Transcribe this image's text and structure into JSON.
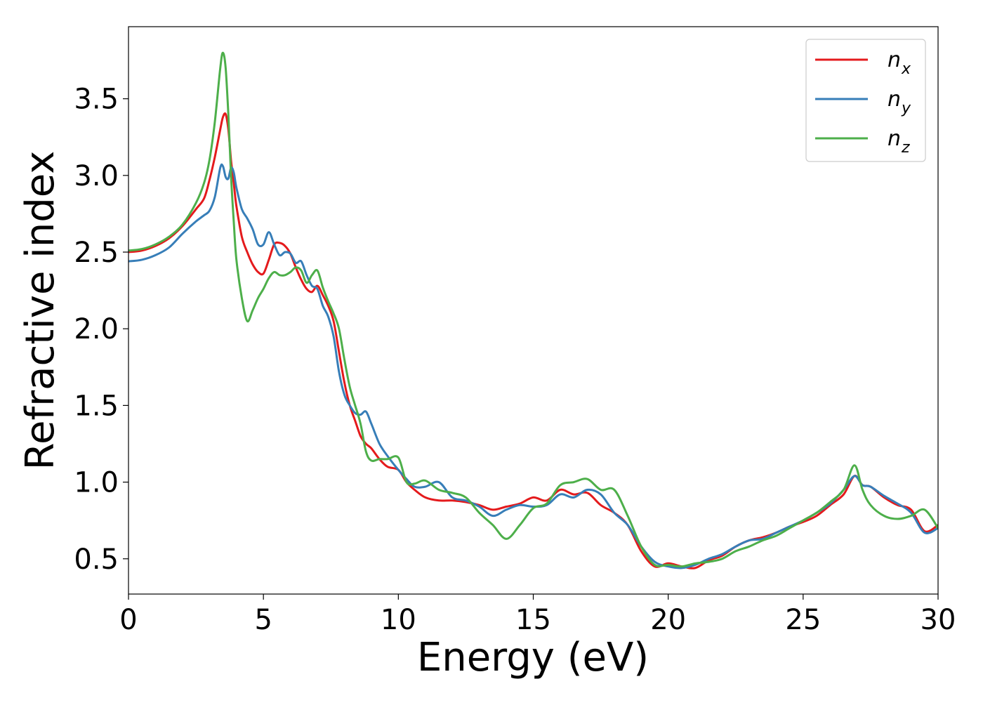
{
  "chart_data": {
    "type": "line",
    "xlabel": "Energy (eV)",
    "ylabel": "Refractive index",
    "xlim": [
      0,
      30
    ],
    "ylim": [
      0.27,
      3.97
    ],
    "xticks": [
      0,
      5,
      10,
      15,
      20,
      25,
      30
    ],
    "xtick_labels": [
      "0",
      "5",
      "10",
      "15",
      "20",
      "25",
      "30"
    ],
    "yticks": [
      0.5,
      1.0,
      1.5,
      2.0,
      2.5,
      3.0,
      3.5
    ],
    "ytick_labels": [
      "0.5",
      "1.0",
      "1.5",
      "2.0",
      "2.5",
      "3.0",
      "3.5"
    ],
    "grid": false,
    "legend_position": "upper-right",
    "series": [
      {
        "name": "n",
        "subscript": "x",
        "color": "#e41a1c",
        "x": [
          0,
          0.5,
          1.0,
          1.5,
          2.0,
          2.5,
          2.8,
          3.0,
          3.2,
          3.4,
          3.5,
          3.6,
          3.7,
          3.8,
          3.9,
          4.0,
          4.2,
          4.4,
          4.6,
          4.8,
          5.0,
          5.2,
          5.4,
          5.6,
          5.8,
          6.0,
          6.2,
          6.4,
          6.6,
          6.8,
          7.0,
          7.2,
          7.4,
          7.6,
          7.8,
          8.0,
          8.2,
          8.4,
          8.6,
          8.8,
          9.0,
          9.3,
          9.6,
          10.0,
          10.3,
          10.6,
          11.0,
          11.5,
          12.0,
          12.5,
          13.0,
          13.5,
          14.0,
          14.5,
          15.0,
          15.5,
          16.0,
          16.5,
          17.0,
          17.5,
          18.0,
          18.5,
          19.0,
          19.5,
          20.0,
          20.5,
          21.0,
          21.5,
          22.0,
          22.5,
          23.0,
          23.5,
          24.0,
          24.5,
          25.0,
          25.5,
          26.0,
          26.5,
          26.9,
          27.2,
          27.5,
          28.0,
          28.5,
          29.0,
          29.5,
          30.0
        ],
        "values": [
          2.5,
          2.51,
          2.54,
          2.59,
          2.67,
          2.78,
          2.85,
          2.97,
          3.12,
          3.3,
          3.38,
          3.4,
          3.3,
          3.1,
          2.95,
          2.8,
          2.6,
          2.5,
          2.42,
          2.37,
          2.36,
          2.45,
          2.55,
          2.56,
          2.54,
          2.49,
          2.4,
          2.32,
          2.26,
          2.24,
          2.28,
          2.22,
          2.15,
          2.05,
          1.85,
          1.65,
          1.5,
          1.4,
          1.3,
          1.25,
          1.22,
          1.15,
          1.1,
          1.08,
          1.0,
          0.95,
          0.9,
          0.88,
          0.88,
          0.87,
          0.85,
          0.82,
          0.84,
          0.86,
          0.9,
          0.88,
          0.95,
          0.92,
          0.93,
          0.85,
          0.8,
          0.72,
          0.55,
          0.45,
          0.47,
          0.45,
          0.44,
          0.49,
          0.52,
          0.58,
          0.62,
          0.64,
          0.67,
          0.71,
          0.74,
          0.78,
          0.85,
          0.92,
          1.04,
          0.98,
          0.97,
          0.9,
          0.85,
          0.82,
          0.68,
          0.72
        ]
      },
      {
        "name": "n",
        "subscript": "y",
        "color": "#377eb8",
        "x": [
          0,
          0.5,
          1.0,
          1.5,
          2.0,
          2.5,
          2.8,
          3.0,
          3.2,
          3.4,
          3.5,
          3.6,
          3.7,
          3.8,
          3.9,
          4.0,
          4.2,
          4.4,
          4.6,
          4.8,
          5.0,
          5.2,
          5.4,
          5.6,
          5.8,
          6.0,
          6.2,
          6.4,
          6.6,
          6.8,
          7.0,
          7.2,
          7.4,
          7.6,
          7.8,
          8.0,
          8.2,
          8.4,
          8.6,
          8.8,
          9.0,
          9.3,
          9.6,
          10.0,
          10.3,
          10.6,
          11.0,
          11.5,
          12.0,
          12.5,
          13.0,
          13.5,
          14.0,
          14.5,
          15.0,
          15.5,
          16.0,
          16.5,
          17.0,
          17.5,
          18.0,
          18.5,
          19.0,
          19.5,
          20.0,
          20.5,
          21.0,
          21.5,
          22.0,
          22.5,
          23.0,
          23.5,
          24.0,
          24.5,
          25.0,
          25.5,
          26.0,
          26.5,
          26.9,
          27.2,
          27.5,
          28.0,
          28.5,
          29.0,
          29.5,
          30.0
        ],
        "values": [
          2.44,
          2.45,
          2.48,
          2.53,
          2.62,
          2.7,
          2.74,
          2.77,
          2.86,
          3.05,
          3.06,
          2.99,
          2.98,
          3.05,
          3.02,
          2.92,
          2.78,
          2.72,
          2.65,
          2.55,
          2.55,
          2.63,
          2.55,
          2.48,
          2.5,
          2.49,
          2.43,
          2.44,
          2.35,
          2.28,
          2.26,
          2.15,
          2.08,
          1.95,
          1.72,
          1.57,
          1.5,
          1.45,
          1.44,
          1.46,
          1.38,
          1.25,
          1.17,
          1.08,
          1.02,
          0.97,
          0.97,
          1.0,
          0.9,
          0.88,
          0.84,
          0.78,
          0.82,
          0.85,
          0.84,
          0.85,
          0.92,
          0.9,
          0.95,
          0.92,
          0.8,
          0.72,
          0.58,
          0.48,
          0.45,
          0.44,
          0.46,
          0.5,
          0.53,
          0.58,
          0.62,
          0.63,
          0.67,
          0.71,
          0.75,
          0.8,
          0.86,
          0.95,
          1.04,
          0.98,
          0.97,
          0.91,
          0.86,
          0.8,
          0.67,
          0.7
        ]
      },
      {
        "name": "n",
        "subscript": "z",
        "color": "#4daf4a",
        "x": [
          0,
          0.5,
          1.0,
          1.5,
          2.0,
          2.5,
          2.8,
          3.0,
          3.2,
          3.4,
          3.5,
          3.6,
          3.7,
          3.8,
          3.9,
          4.0,
          4.2,
          4.4,
          4.6,
          4.8,
          5.0,
          5.2,
          5.4,
          5.6,
          5.8,
          6.0,
          6.2,
          6.4,
          6.6,
          6.8,
          7.0,
          7.2,
          7.4,
          7.6,
          7.8,
          8.0,
          8.2,
          8.4,
          8.6,
          8.8,
          9.0,
          9.3,
          9.6,
          10.0,
          10.3,
          10.6,
          11.0,
          11.5,
          12.0,
          12.5,
          13.0,
          13.5,
          14.0,
          14.5,
          15.0,
          15.5,
          16.0,
          16.5,
          17.0,
          17.5,
          18.0,
          18.5,
          19.0,
          19.5,
          20.0,
          20.5,
          21.0,
          21.5,
          22.0,
          22.5,
          23.0,
          23.5,
          24.0,
          24.5,
          25.0,
          25.5,
          26.0,
          26.5,
          26.9,
          27.2,
          27.5,
          28.0,
          28.5,
          29.0,
          29.5,
          30.0
        ],
        "values": [
          2.51,
          2.52,
          2.55,
          2.6,
          2.68,
          2.82,
          2.95,
          3.1,
          3.35,
          3.7,
          3.8,
          3.7,
          3.4,
          3.0,
          2.7,
          2.45,
          2.2,
          2.05,
          2.12,
          2.2,
          2.26,
          2.33,
          2.37,
          2.35,
          2.35,
          2.37,
          2.4,
          2.38,
          2.3,
          2.35,
          2.38,
          2.27,
          2.18,
          2.1,
          2.0,
          1.8,
          1.62,
          1.5,
          1.38,
          1.2,
          1.14,
          1.15,
          1.15,
          1.16,
          1.0,
          0.99,
          1.01,
          0.95,
          0.93,
          0.9,
          0.8,
          0.72,
          0.63,
          0.72,
          0.83,
          0.86,
          0.98,
          1.0,
          1.02,
          0.95,
          0.95,
          0.78,
          0.58,
          0.46,
          0.46,
          0.45,
          0.47,
          0.48,
          0.5,
          0.55,
          0.58,
          0.62,
          0.65,
          0.7,
          0.75,
          0.8,
          0.87,
          0.95,
          1.11,
          0.95,
          0.85,
          0.78,
          0.76,
          0.78,
          0.82,
          0.7
        ]
      }
    ]
  }
}
